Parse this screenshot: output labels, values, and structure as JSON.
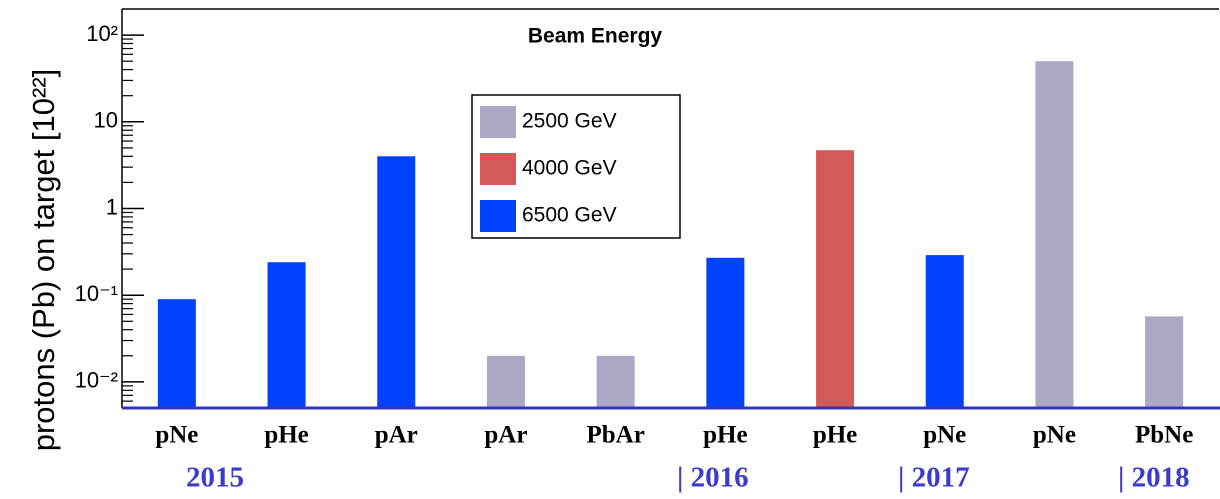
{
  "chart_data": {
    "type": "bar",
    "title": "Beam Energy",
    "ylabel": "protons (Pb) on target  [10²²]",
    "categories": [
      "pNe",
      "pHe",
      "pAr",
      "pAr",
      "PbAr",
      "pHe",
      "pHe",
      "pNe",
      "pNe",
      "PbNe"
    ],
    "series": [
      {
        "name": "2500 GeV",
        "color": "#aba7c4",
        "values": [
          null,
          null,
          null,
          0.02,
          0.02,
          null,
          null,
          null,
          50,
          0.057
        ]
      },
      {
        "name": "4000 GeV",
        "color": "#d35a56",
        "values": [
          null,
          null,
          null,
          null,
          null,
          null,
          4.7,
          null,
          null,
          null
        ]
      },
      {
        "name": "6500 GeV",
        "color": "#0042ff",
        "values": [
          0.09,
          0.24,
          4,
          null,
          null,
          0.27,
          null,
          0.29,
          null,
          null
        ]
      }
    ],
    "ylim": [
      0.005,
      200
    ],
    "yticks": [
      {
        "value": 0.01,
        "label": "10⁻²"
      },
      {
        "value": 0.1,
        "label": "10⁻¹"
      },
      1,
      10,
      {
        "value": 100,
        "label": "10²"
      }
    ],
    "log_y": true,
    "annotations": [
      "2015",
      "| 2016",
      "| 2017",
      "| 2018"
    ]
  }
}
